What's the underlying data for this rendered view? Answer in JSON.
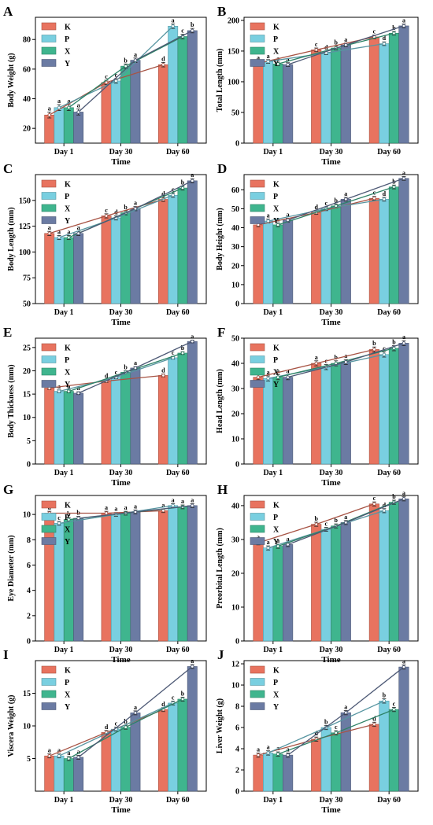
{
  "figure": {
    "colors": {
      "K": "#E8735F",
      "P": "#79CFE0",
      "X": "#3FB58E",
      "Y": "#6B7BA3"
    },
    "legend_labels": [
      "K",
      "P",
      "X",
      "Y"
    ]
  },
  "chart_data": [
    {
      "panel": "A",
      "type": "bar",
      "categories": [
        "Day 1",
        "Day 30",
        "Day 60"
      ],
      "xlabel": "Time",
      "ylabel": "Body Weight (g)",
      "ylim": [
        10,
        95
      ],
      "yticks": [
        20,
        40,
        60,
        80
      ],
      "series": [
        {
          "name": "K",
          "values": [
            29,
            51,
            63
          ],
          "errors": [
            2,
            1.5,
            1.5
          ],
          "letters": [
            "a",
            "c",
            "d"
          ]
        },
        {
          "name": "P",
          "values": [
            34,
            52,
            89
          ],
          "errors": [
            2,
            1.5,
            1.5
          ],
          "letters": [
            "a",
            "c",
            "a"
          ]
        },
        {
          "name": "X",
          "values": [
            34,
            62,
            82
          ],
          "errors": [
            2,
            1.5,
            1.5
          ],
          "letters": [
            "a",
            "b",
            "c"
          ]
        },
        {
          "name": "Y",
          "values": [
            31,
            66,
            86
          ],
          "errors": [
            2,
            1.5,
            1.5
          ],
          "letters": [
            "a",
            "a",
            "b"
          ]
        }
      ]
    },
    {
      "panel": "B",
      "type": "bar",
      "categories": [
        "Day 1",
        "Day 30",
        "Day 60"
      ],
      "xlabel": "Time",
      "ylabel": "Total Length (mm)",
      "ylim": [
        0,
        205
      ],
      "yticks": [
        0,
        50,
        100,
        150,
        200
      ],
      "series": [
        {
          "name": "K",
          "values": [
            130,
            152,
            173
          ],
          "errors": [
            3,
            3,
            3
          ],
          "letters": [
            "a",
            "c",
            "c"
          ]
        },
        {
          "name": "P",
          "values": [
            133,
            147,
            162
          ],
          "errors": [
            3,
            3,
            3
          ],
          "letters": [
            "a",
            "d",
            "d"
          ]
        },
        {
          "name": "X",
          "values": [
            129,
            155,
            179
          ],
          "errors": [
            3,
            3,
            3
          ],
          "letters": [
            "a",
            "b",
            "b"
          ]
        },
        {
          "name": "Y",
          "values": [
            128,
            160,
            191
          ],
          "errors": [
            3,
            3,
            3
          ],
          "letters": [
            "a",
            "a",
            "a"
          ]
        }
      ]
    },
    {
      "panel": "C",
      "type": "bar",
      "categories": [
        "Day 1",
        "Day 30",
        "Day 60"
      ],
      "xlabel": "Time",
      "ylabel": "Body Length (mm)",
      "ylim": [
        50,
        175
      ],
      "yticks": [
        50,
        75,
        100,
        125,
        150
      ],
      "series": [
        {
          "name": "K",
          "values": [
            118,
            135,
            151
          ],
          "errors": [
            2,
            2,
            2
          ],
          "letters": [
            "a",
            "c",
            "d"
          ]
        },
        {
          "name": "P",
          "values": [
            114,
            133,
            155
          ],
          "errors": [
            2,
            2,
            2
          ],
          "letters": [
            "a",
            "d",
            "c"
          ]
        },
        {
          "name": "X",
          "values": [
            114,
            138,
            162
          ],
          "errors": [
            2,
            2,
            2
          ],
          "letters": [
            "a",
            "b",
            "b"
          ]
        },
        {
          "name": "Y",
          "values": [
            118,
            142,
            169
          ],
          "errors": [
            2,
            2,
            2
          ],
          "letters": [
            "a",
            "a",
            "a"
          ]
        }
      ]
    },
    {
      "panel": "D",
      "type": "bar",
      "categories": [
        "Day 1",
        "Day 30",
        "Day 60"
      ],
      "xlabel": "Time",
      "ylabel": "Body Height (mm)",
      "ylim": [
        0,
        68
      ],
      "yticks": [
        0,
        10,
        20,
        30,
        40,
        50,
        60
      ],
      "series": [
        {
          "name": "K",
          "values": [
            41.5,
            48,
            55.5
          ],
          "errors": [
            1,
            1,
            1
          ],
          "letters": [
            "a",
            "d",
            "c"
          ]
        },
        {
          "name": "P",
          "values": [
            43.5,
            50,
            55
          ],
          "errors": [
            1,
            1,
            1
          ],
          "letters": [
            "a",
            "c",
            "d"
          ]
        },
        {
          "name": "X",
          "values": [
            41.5,
            51.5,
            61.5
          ],
          "errors": [
            1,
            1,
            1
          ],
          "letters": [
            "a",
            "b",
            "b"
          ]
        },
        {
          "name": "Y",
          "values": [
            44,
            55,
            66
          ],
          "errors": [
            1,
            1,
            1
          ],
          "letters": [
            "a",
            "a",
            "a"
          ]
        }
      ]
    },
    {
      "panel": "E",
      "type": "bar",
      "categories": [
        "Day 1",
        "Day 30",
        "Day 60"
      ],
      "xlabel": "Time",
      "ylabel": "Body Thickness (mm)",
      "ylim": [
        0,
        27
      ],
      "yticks": [
        0,
        5,
        10,
        15,
        20,
        25
      ],
      "series": [
        {
          "name": "K",
          "values": [
            16.3,
            17.8,
            19
          ],
          "errors": [
            0.3,
            0.3,
            0.3
          ],
          "letters": [
            "a",
            "d",
            "d"
          ]
        },
        {
          "name": "P",
          "values": [
            15.6,
            18.6,
            22.8
          ],
          "errors": [
            0.3,
            0.3,
            0.3
          ],
          "letters": [
            "a",
            "c",
            "c"
          ]
        },
        {
          "name": "X",
          "values": [
            15.6,
            19.7,
            23.8
          ],
          "errors": [
            0.3,
            0.3,
            0.3
          ],
          "letters": [
            "a",
            "b",
            "b"
          ]
        },
        {
          "name": "Y",
          "values": [
            15.2,
            20.6,
            26.3
          ],
          "errors": [
            0.3,
            0.3,
            0.3
          ],
          "letters": [
            "a",
            "a",
            "a"
          ]
        }
      ]
    },
    {
      "panel": "F",
      "type": "bar",
      "categories": [
        "Day 1",
        "Day 30",
        "Day 60"
      ],
      "xlabel": "Time",
      "ylabel": "Head Length (mm)",
      "ylim": [
        0,
        50
      ],
      "yticks": [
        0,
        10,
        20,
        30,
        40,
        50
      ],
      "series": [
        {
          "name": "K",
          "values": [
            34.5,
            40,
            45.5
          ],
          "errors": [
            1,
            1,
            1
          ],
          "letters": [
            "a",
            "a",
            "b"
          ]
        },
        {
          "name": "P",
          "values": [
            34,
            38.5,
            43.5
          ],
          "errors": [
            1,
            1,
            1
          ],
          "letters": [
            "a",
            "c",
            "c"
          ]
        },
        {
          "name": "X",
          "values": [
            34.5,
            40,
            46
          ],
          "errors": [
            1,
            1,
            1
          ],
          "letters": [
            "a",
            "b",
            "b"
          ]
        },
        {
          "name": "Y",
          "values": [
            34.5,
            40.5,
            48
          ],
          "errors": [
            1,
            1,
            1
          ],
          "letters": [
            "a",
            "a",
            "a"
          ]
        }
      ]
    },
    {
      "panel": "G",
      "type": "bar",
      "categories": [
        "Day 1",
        "Day 30",
        "Day 60"
      ],
      "xlabel": "Time",
      "ylabel": "Eye Diameter (mm)",
      "ylim": [
        0,
        11.5
      ],
      "yticks": [
        0,
        2,
        4,
        6,
        8,
        10
      ],
      "series": [
        {
          "name": "K",
          "values": [
            10.1,
            10.1,
            10.3
          ],
          "errors": [
            0.15,
            0.15,
            0.15
          ],
          "letters": [
            "a",
            "a",
            "a"
          ]
        },
        {
          "name": "P",
          "values": [
            9.3,
            10.0,
            10.7
          ],
          "errors": [
            0.15,
            0.15,
            0.15
          ],
          "letters": [
            "c",
            "a",
            "a"
          ]
        },
        {
          "name": "X",
          "values": [
            9.6,
            10.1,
            10.6
          ],
          "errors": [
            0.15,
            0.15,
            0.15
          ],
          "letters": [
            "b",
            "a",
            "a"
          ]
        },
        {
          "name": "Y",
          "values": [
            9.7,
            10.2,
            10.7
          ],
          "errors": [
            0.15,
            0.15,
            0.15
          ],
          "letters": [
            "b",
            "a",
            "a"
          ]
        }
      ]
    },
    {
      "panel": "H",
      "type": "bar",
      "categories": [
        "Day 1",
        "Day 30",
        "Day 60"
      ],
      "xlabel": "Time",
      "ylabel": "Preorbital Length (mm)",
      "ylim": [
        0,
        43
      ],
      "yticks": [
        0,
        10,
        20,
        30,
        40
      ],
      "series": [
        {
          "name": "K",
          "values": [
            29,
            34.5,
            40.5
          ],
          "errors": [
            0.6,
            0.6,
            0.6
          ],
          "letters": [
            "a",
            "b",
            "c"
          ]
        },
        {
          "name": "P",
          "values": [
            27.5,
            33,
            38.5
          ],
          "errors": [
            0.6,
            0.6,
            0.6
          ],
          "letters": [
            "a",
            "c",
            "d"
          ]
        },
        {
          "name": "X",
          "values": [
            28,
            34,
            41
          ],
          "errors": [
            0.6,
            0.6,
            0.6
          ],
          "letters": [
            "a",
            "b",
            "b"
          ]
        },
        {
          "name": "Y",
          "values": [
            28.5,
            35,
            42
          ],
          "errors": [
            0.6,
            0.6,
            0.6
          ],
          "letters": [
            "a",
            "a",
            "a"
          ]
        }
      ]
    },
    {
      "panel": "I",
      "type": "bar",
      "categories": [
        "Day 1",
        "Day 30",
        "Day 60"
      ],
      "xlabel": "Time",
      "ylabel": "Viscera Weight (g)",
      "ylim": [
        0,
        20
      ],
      "yticks": [
        5,
        10,
        15
      ],
      "series": [
        {
          "name": "K",
          "values": [
            5.4,
            9.0,
            12.5
          ],
          "errors": [
            0.3,
            0.3,
            0.3
          ],
          "letters": [
            "a",
            "d",
            "d"
          ]
        },
        {
          "name": "P",
          "values": [
            5.4,
            9.5,
            13.5
          ],
          "errors": [
            0.3,
            0.3,
            0.3
          ],
          "letters": [
            "a",
            "c",
            "c"
          ]
        },
        {
          "name": "X",
          "values": [
            5.0,
            9.8,
            14.1
          ],
          "errors": [
            0.3,
            0.3,
            0.3
          ],
          "letters": [
            "a",
            "b",
            "b"
          ]
        },
        {
          "name": "Y",
          "values": [
            5.2,
            12.0,
            19.1
          ],
          "errors": [
            0.3,
            0.3,
            0.3
          ],
          "letters": [
            "a",
            "a",
            "a"
          ]
        }
      ]
    },
    {
      "panel": "J",
      "type": "bar",
      "categories": [
        "Day 1",
        "Day 30",
        "Day 60"
      ],
      "xlabel": "Time",
      "ylabel": "Liver Weight (g)",
      "ylim": [
        0,
        12.3
      ],
      "yticks": [
        0,
        2,
        4,
        6,
        8,
        10,
        12
      ],
      "series": [
        {
          "name": "K",
          "values": [
            3.4,
            4.9,
            6.3
          ],
          "errors": [
            0.2,
            0.2,
            0.2
          ],
          "letters": [
            "a",
            "d",
            "d"
          ]
        },
        {
          "name": "P",
          "values": [
            3.6,
            6.0,
            8.5
          ],
          "errors": [
            0.2,
            0.2,
            0.2
          ],
          "letters": [
            "a",
            "b",
            "b"
          ]
        },
        {
          "name": "X",
          "values": [
            3.5,
            5.5,
            7.7
          ],
          "errors": [
            0.2,
            0.2,
            0.2
          ],
          "letters": [
            "a",
            "c",
            "c"
          ]
        },
        {
          "name": "Y",
          "values": [
            3.4,
            7.4,
            11.7
          ],
          "errors": [
            0.2,
            0.2,
            0.2
          ],
          "letters": [
            "a",
            "a",
            "a"
          ]
        }
      ]
    }
  ]
}
